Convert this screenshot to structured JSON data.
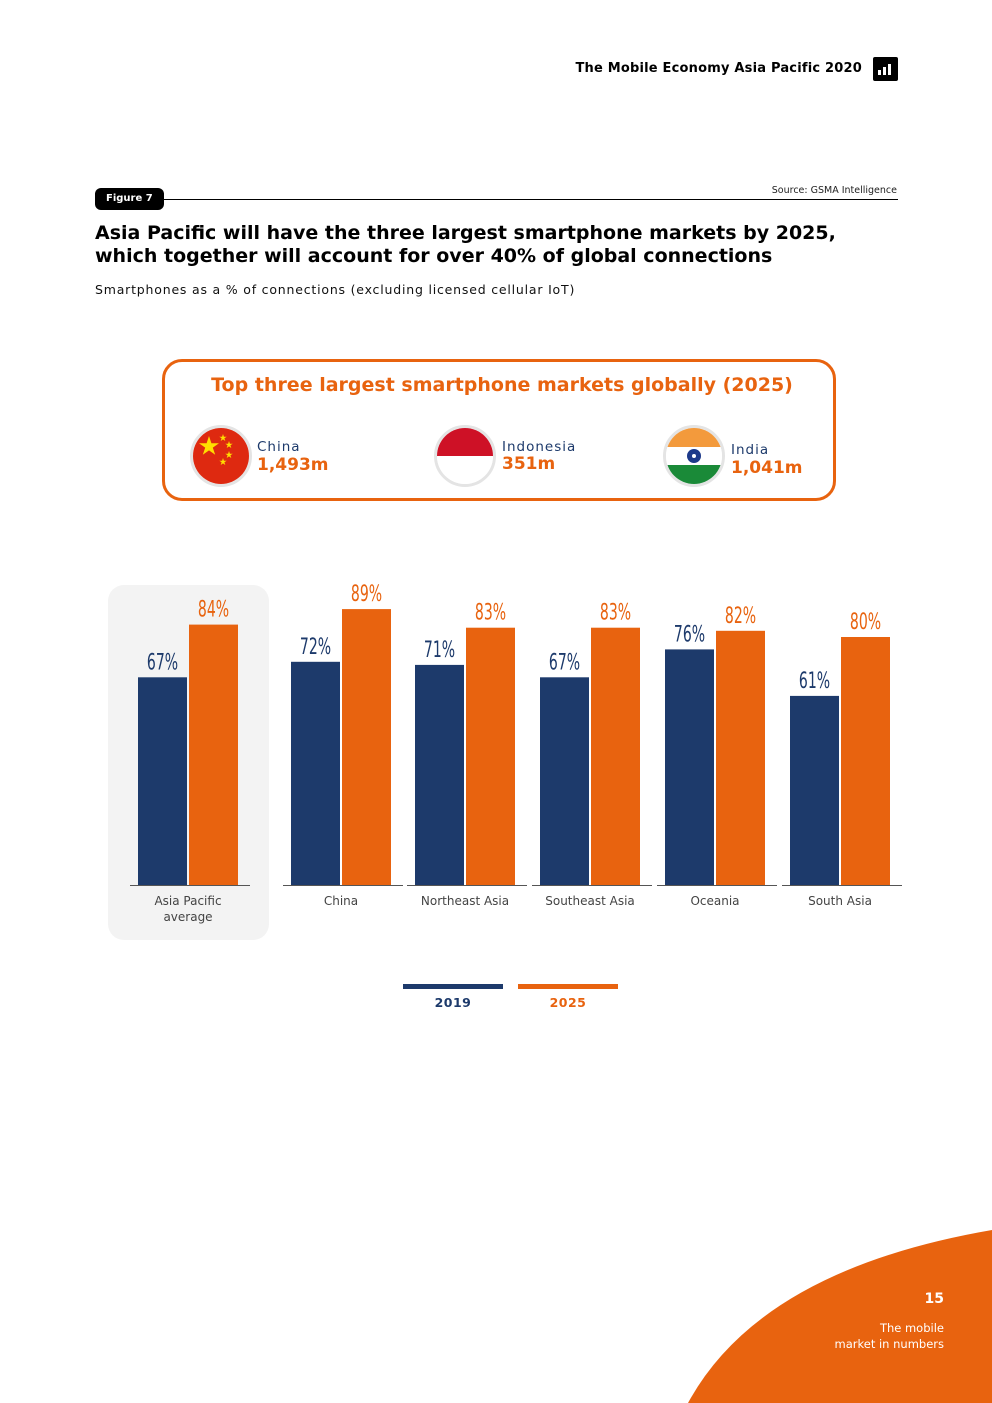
{
  "header": {
    "title": "The Mobile Economy Asia Pacific 2020",
    "icon": "bar-chart-icon"
  },
  "figure": {
    "tag": "Figure 7",
    "source": "Source: GSMA Intelligence",
    "title": "Asia Pacific will have the three largest smartphone markets by 2025, which together will account for over 40% of global connections",
    "subtitle": "Smartphones as a % of connections (excluding licensed cellular IoT)"
  },
  "top_markets": {
    "title": "Top three largest smartphone markets globally (2025)",
    "items": [
      {
        "name": "China",
        "value": "1,493m",
        "flag": "china-flag-icon"
      },
      {
        "name": "Indonesia",
        "value": "351m",
        "flag": "indonesia-flag-icon"
      },
      {
        "name": "India",
        "value": "1,041m",
        "flag": "india-flag-icon"
      }
    ]
  },
  "chart_data": {
    "type": "bar",
    "categories": [
      "Asia Pacific\naverage",
      "China",
      "Northeast Asia",
      "Southeast Asia",
      "Oceania",
      "South Asia"
    ],
    "series": [
      {
        "name": "2019",
        "values": [
          67,
          72,
          71,
          67,
          76,
          61
        ],
        "labels": [
          "67%",
          "72%",
          "71%",
          "67%",
          "76%",
          "61%"
        ],
        "color": "#1d3a6b"
      },
      {
        "name": "2025",
        "values": [
          84,
          89,
          83,
          83,
          82,
          80
        ],
        "labels": [
          "84%",
          "89%",
          "83%",
          "83%",
          "82%",
          "80%"
        ],
        "color": "#e8630f"
      }
    ],
    "ylim": [
      0,
      100
    ],
    "grid": false,
    "legend": "bottom-center",
    "highlight_category": "Asia Pacific\naverage"
  },
  "colors": {
    "accent": "#e8630f",
    "navy": "#1d3a6b"
  },
  "footer": {
    "page_number": "15",
    "section": "The mobile\nmarket in numbers"
  }
}
